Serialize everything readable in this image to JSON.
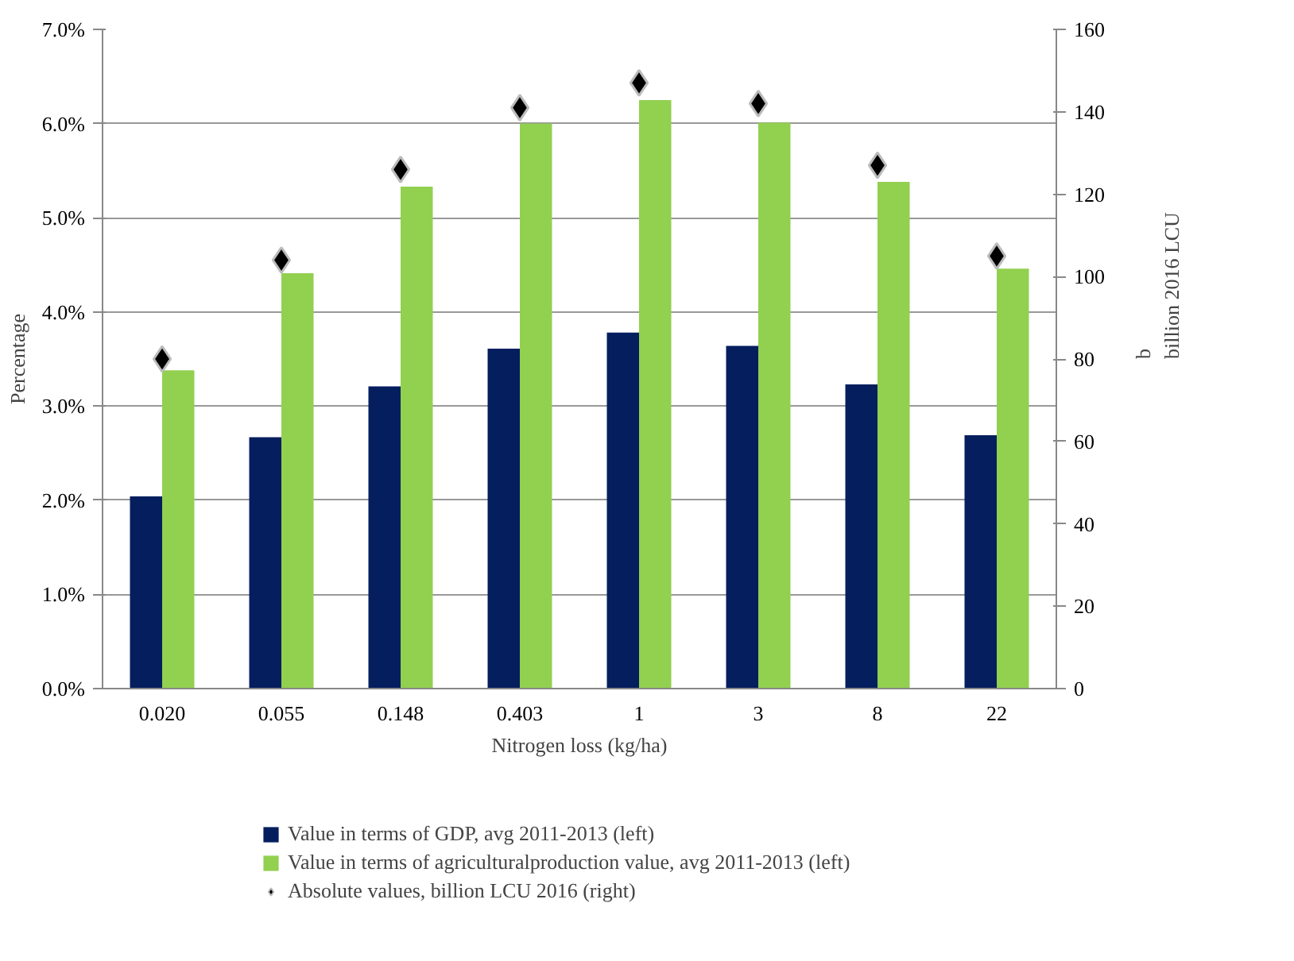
{
  "chart_data": {
    "type": "bar",
    "xlabel": "Nitrogen loss (kg/ha)",
    "ylabel": "Percentage",
    "y2label": "b\nbillion 2016 LCU",
    "categories": [
      "0.020",
      "0.055",
      "0.148",
      "0.403",
      "1",
      "3",
      "8",
      "22"
    ],
    "series": [
      {
        "name": "Value in terms of GDP, avg 2011-2013 (left)",
        "color": "#041e5e",
        "values": [
          2.04,
          2.67,
          3.21,
          3.61,
          3.78,
          3.64,
          3.23,
          2.69
        ]
      },
      {
        "name": "Value in terms of agriculturalproduction value, avg 2011-2013 (left)",
        "color": "#92d050",
        "values": [
          3.38,
          4.41,
          5.33,
          6.0,
          6.25,
          6.01,
          5.38,
          4.46
        ]
      },
      {
        "name": "Absolute values, billion LCU 2016 (right)",
        "type": "scatter",
        "axis": "y2",
        "marker": "diamond",
        "color": "#000000",
        "values": [
          80,
          104,
          126,
          141,
          147,
          142,
          127,
          105
        ]
      }
    ],
    "ylim": [
      0,
      7
    ],
    "yticks": [
      {
        "value": 0,
        "label": "0.0%"
      },
      {
        "value": 1,
        "label": "1.0%"
      },
      {
        "value": 2,
        "label": "2.0%"
      },
      {
        "value": 3,
        "label": "3.0%"
      },
      {
        "value": 4,
        "label": "4.0%"
      },
      {
        "value": 5,
        "label": "5.0%"
      },
      {
        "value": 6,
        "label": "6.0%"
      },
      {
        "value": 7,
        "label": "7.0%"
      }
    ],
    "y2lim": [
      0,
      160
    ],
    "y2ticks": [
      0,
      20,
      40,
      60,
      80,
      100,
      120,
      140,
      160
    ],
    "grid": "y",
    "legend": "bottom"
  }
}
